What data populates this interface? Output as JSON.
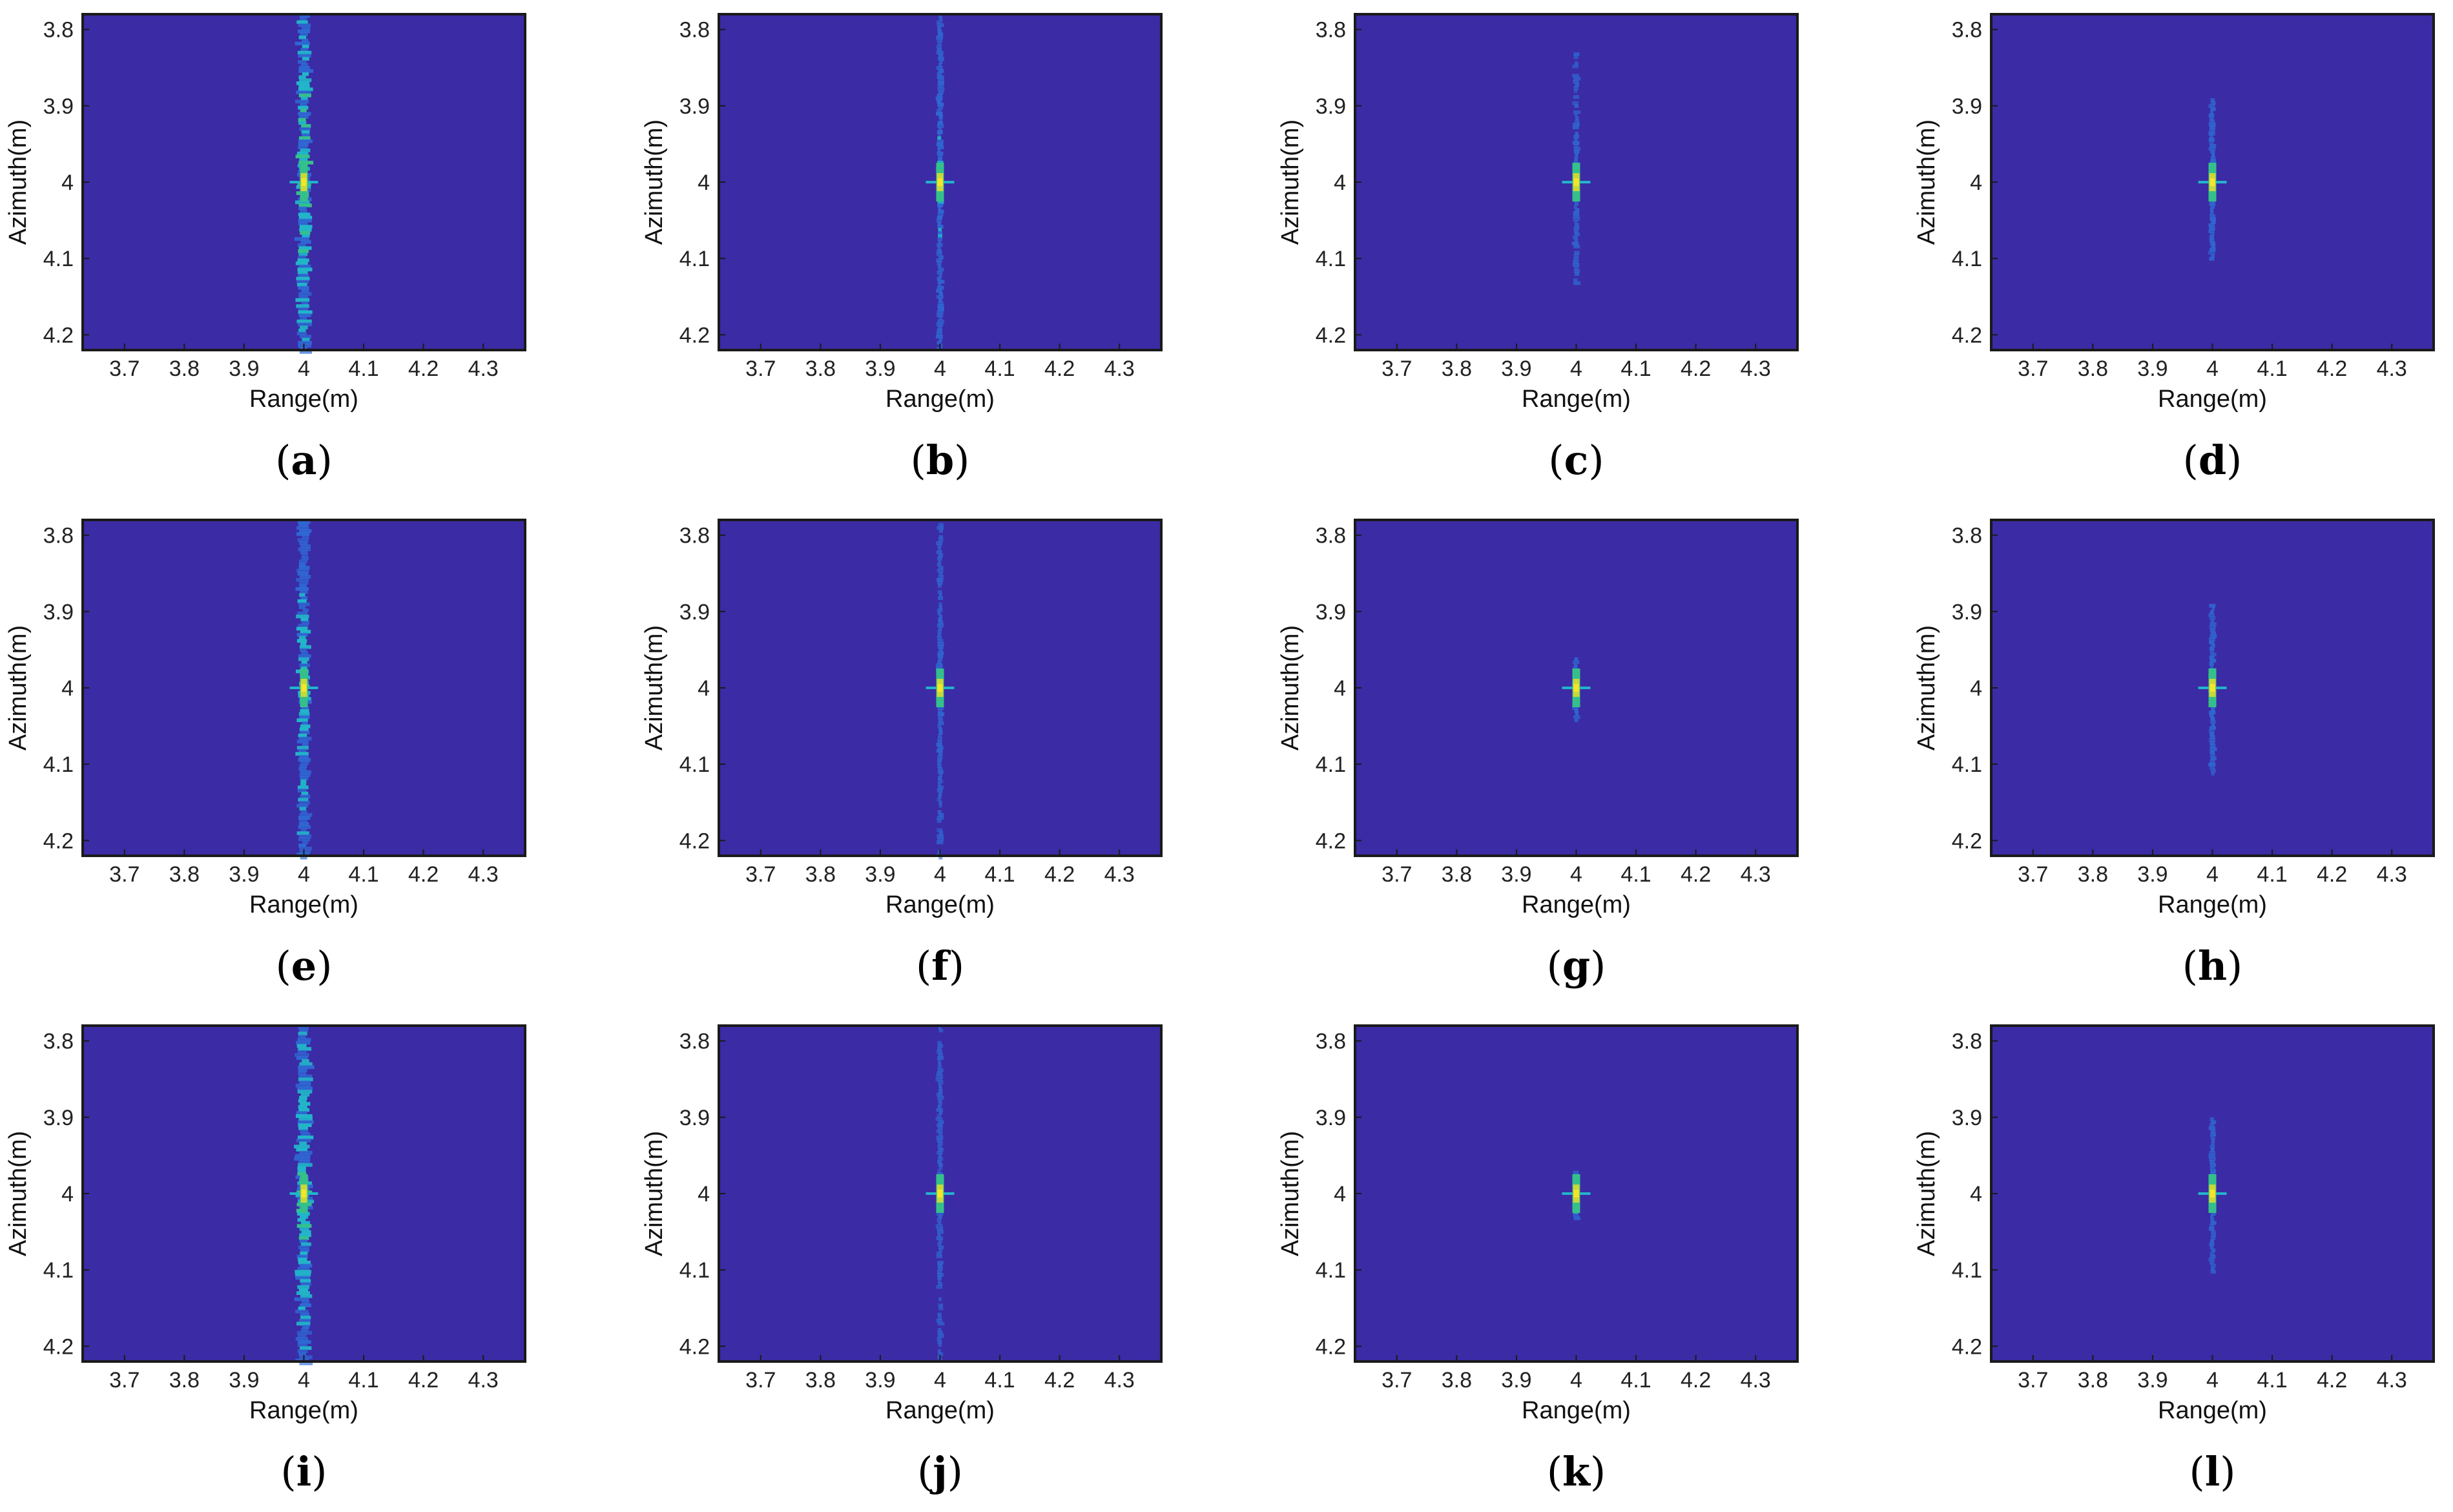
{
  "colors": {
    "background": "#3b2ba5",
    "streak": "#2e6fd8",
    "streak_bright": "#22b5c9",
    "mid": "#35c08a",
    "hot": "#c8d83a",
    "peak": "#f5e528",
    "frame": "#1a1a1a"
  },
  "chart_data": [
    {
      "panel_label": "a",
      "type": "heatmap",
      "xlabel": "Range(m)",
      "ylabel": "Azimuth(m)",
      "xlim": [
        3.63,
        4.37
      ],
      "ylim": [
        3.78,
        4.22
      ],
      "x_ticks": [
        "3.7",
        "3.8",
        "3.9",
        "4",
        "4.1",
        "4.2",
        "4.3"
      ],
      "y_ticks": [
        "3.8",
        "3.9",
        "4",
        "4.1",
        "4.2"
      ],
      "peak": [
        4.0,
        4.0
      ],
      "streak_extent": [
        3.78,
        4.22
      ],
      "streak_strength": 0.95,
      "streak_width": 0.018
    },
    {
      "panel_label": "b",
      "type": "heatmap",
      "xlabel": "Range(m)",
      "ylabel": "Azimuth(m)",
      "xlim": [
        3.63,
        4.37
      ],
      "ylim": [
        3.78,
        4.22
      ],
      "x_ticks": [
        "3.7",
        "3.8",
        "3.9",
        "4",
        "4.1",
        "4.2",
        "4.3"
      ],
      "y_ticks": [
        "3.8",
        "3.9",
        "4",
        "4.1",
        "4.2"
      ],
      "peak": [
        4.0,
        4.0
      ],
      "streak_extent": [
        3.78,
        4.22
      ],
      "streak_strength": 0.55,
      "streak_width": 0.008
    },
    {
      "panel_label": "c",
      "type": "heatmap",
      "xlabel": "Range(m)",
      "ylabel": "Azimuth(m)",
      "xlim": [
        3.63,
        4.37
      ],
      "ylim": [
        3.78,
        4.22
      ],
      "x_ticks": [
        "3.7",
        "3.8",
        "3.9",
        "4",
        "4.1",
        "4.2",
        "4.3"
      ],
      "y_ticks": [
        "3.8",
        "3.9",
        "4",
        "4.1",
        "4.2"
      ],
      "peak": [
        4.0,
        4.0
      ],
      "streak_extent": [
        3.83,
        4.13
      ],
      "streak_strength": 0.35,
      "streak_width": 0.006
    },
    {
      "panel_label": "d",
      "type": "heatmap",
      "xlabel": "Range(m)",
      "ylabel": "Azimuth(m)",
      "xlim": [
        3.63,
        4.37
      ],
      "ylim": [
        3.78,
        4.22
      ],
      "x_ticks": [
        "3.7",
        "3.8",
        "3.9",
        "4",
        "4.1",
        "4.2",
        "4.3"
      ],
      "y_ticks": [
        "3.8",
        "3.9",
        "4",
        "4.1",
        "4.2"
      ],
      "peak": [
        4.0,
        4.0
      ],
      "streak_extent": [
        3.89,
        4.1
      ],
      "streak_strength": 0.45,
      "streak_width": 0.006
    },
    {
      "panel_label": "e",
      "type": "heatmap",
      "xlabel": "Range(m)",
      "ylabel": "Azimuth(m)",
      "xlim": [
        3.63,
        4.37
      ],
      "ylim": [
        3.78,
        4.22
      ],
      "x_ticks": [
        "3.7",
        "3.8",
        "3.9",
        "4",
        "4.1",
        "4.2",
        "4.3"
      ],
      "y_ticks": [
        "3.8",
        "3.9",
        "4",
        "4.1",
        "4.2"
      ],
      "peak": [
        4.0,
        4.0
      ],
      "streak_extent": [
        3.78,
        4.22
      ],
      "streak_strength": 0.75,
      "streak_width": 0.016
    },
    {
      "panel_label": "f",
      "type": "heatmap",
      "xlabel": "Range(m)",
      "ylabel": "Azimuth(m)",
      "xlim": [
        3.63,
        4.37
      ],
      "ylim": [
        3.78,
        4.22
      ],
      "x_ticks": [
        "3.7",
        "3.8",
        "3.9",
        "4",
        "4.1",
        "4.2",
        "4.3"
      ],
      "y_ticks": [
        "3.8",
        "3.9",
        "4",
        "4.1",
        "4.2"
      ],
      "peak": [
        4.0,
        4.0
      ],
      "streak_extent": [
        3.78,
        4.22
      ],
      "streak_strength": 0.4,
      "streak_width": 0.007
    },
    {
      "panel_label": "g",
      "type": "heatmap",
      "xlabel": "Range(m)",
      "ylabel": "Azimuth(m)",
      "xlim": [
        3.63,
        4.37
      ],
      "ylim": [
        3.78,
        4.22
      ],
      "x_ticks": [
        "3.7",
        "3.8",
        "3.9",
        "4",
        "4.1",
        "4.2",
        "4.3"
      ],
      "y_ticks": [
        "3.8",
        "3.9",
        "4",
        "4.1",
        "4.2"
      ],
      "peak": [
        4.0,
        4.0
      ],
      "streak_extent": [
        3.96,
        4.04
      ],
      "streak_strength": 0.5,
      "streak_width": 0.006
    },
    {
      "panel_label": "h",
      "type": "heatmap",
      "xlabel": "Range(m)",
      "ylabel": "Azimuth(m)",
      "xlim": [
        3.63,
        4.37
      ],
      "ylim": [
        3.78,
        4.22
      ],
      "x_ticks": [
        "3.7",
        "3.8",
        "3.9",
        "4",
        "4.1",
        "4.2",
        "4.3"
      ],
      "y_ticks": [
        "3.8",
        "3.9",
        "4",
        "4.1",
        "4.2"
      ],
      "peak": [
        4.0,
        4.0
      ],
      "streak_extent": [
        3.89,
        4.11
      ],
      "streak_strength": 0.45,
      "streak_width": 0.006
    },
    {
      "panel_label": "i",
      "type": "heatmap",
      "xlabel": "Range(m)",
      "ylabel": "Azimuth(m)",
      "xlim": [
        3.63,
        4.37
      ],
      "ylim": [
        3.78,
        4.22
      ],
      "x_ticks": [
        "3.7",
        "3.8",
        "3.9",
        "4",
        "4.1",
        "4.2",
        "4.3"
      ],
      "y_ticks": [
        "3.8",
        "3.9",
        "4",
        "4.1",
        "4.2"
      ],
      "peak": [
        4.0,
        4.0
      ],
      "streak_extent": [
        3.78,
        4.22
      ],
      "streak_strength": 0.85,
      "streak_width": 0.02
    },
    {
      "panel_label": "j",
      "type": "heatmap",
      "xlabel": "Range(m)",
      "ylabel": "Azimuth(m)",
      "xlim": [
        3.63,
        4.37
      ],
      "ylim": [
        3.78,
        4.22
      ],
      "x_ticks": [
        "3.7",
        "3.8",
        "3.9",
        "4",
        "4.1",
        "4.2",
        "4.3"
      ],
      "y_ticks": [
        "3.8",
        "3.9",
        "4",
        "4.1",
        "4.2"
      ],
      "peak": [
        4.0,
        4.0
      ],
      "streak_extent": [
        3.78,
        4.22
      ],
      "streak_strength": 0.35,
      "streak_width": 0.006
    },
    {
      "panel_label": "k",
      "type": "heatmap",
      "xlabel": "Range(m)",
      "ylabel": "Azimuth(m)",
      "xlim": [
        3.63,
        4.37
      ],
      "ylim": [
        3.78,
        4.22
      ],
      "x_ticks": [
        "3.7",
        "3.8",
        "3.9",
        "4",
        "4.1",
        "4.2",
        "4.3"
      ],
      "y_ticks": [
        "3.8",
        "3.9",
        "4",
        "4.1",
        "4.2"
      ],
      "peak": [
        4.0,
        4.0
      ],
      "streak_extent": [
        3.97,
        4.03
      ],
      "streak_strength": 0.5,
      "streak_width": 0.006
    },
    {
      "panel_label": "l",
      "type": "heatmap",
      "xlabel": "Range(m)",
      "ylabel": "Azimuth(m)",
      "xlim": [
        3.63,
        4.37
      ],
      "ylim": [
        3.78,
        4.22
      ],
      "x_ticks": [
        "3.7",
        "3.8",
        "3.9",
        "4",
        "4.1",
        "4.2",
        "4.3"
      ],
      "y_ticks": [
        "3.8",
        "3.9",
        "4",
        "4.1",
        "4.2"
      ],
      "peak": [
        4.0,
        4.0
      ],
      "streak_extent": [
        3.9,
        4.1
      ],
      "streak_strength": 0.4,
      "streak_width": 0.005
    }
  ]
}
